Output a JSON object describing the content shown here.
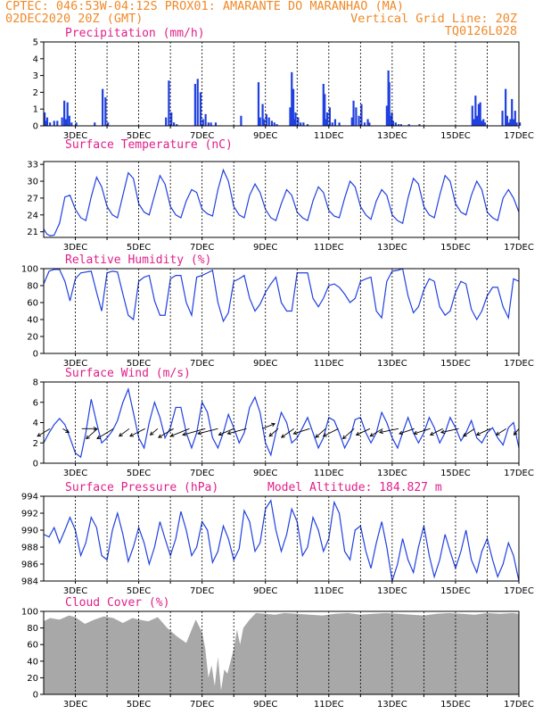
{
  "header": {
    "line1_left": "CPTEC:  046:53W-04:12S  PROX01: AMARANTE DO MARANHAO (MA)",
    "line2_left": "02DEC2020 20Z (GMT)",
    "line2_right": "Vertical Grid Line: 20Z",
    "line3_right": "TQ0126L028"
  },
  "colors": {
    "header": "#f08a2a",
    "title": "#e0208a",
    "series": "#2040e0",
    "cloud": "#a8a8a8"
  },
  "x_axis": {
    "start_day": 2,
    "end_day": 17,
    "labels": [
      "3DEC",
      "5DEC",
      "7DEC",
      "9DEC",
      "11DEC",
      "13DEC",
      "15DEC",
      "17DEC"
    ],
    "label_days": [
      3,
      5,
      7,
      9,
      11,
      13,
      15,
      17
    ],
    "grid": "vertical dashed at 20Z"
  },
  "chart_data": [
    {
      "type": "bar",
      "title": "Precipitation (mm/h)",
      "ylim": [
        0,
        5
      ],
      "yticks": [
        "0",
        "1",
        "2",
        "3",
        "4",
        "5"
      ],
      "x": [
        2.0,
        2.04,
        2.08,
        2.17,
        2.3,
        2.4,
        2.55,
        2.62,
        2.67,
        2.72,
        2.78,
        2.85,
        3.0,
        3.58,
        3.83,
        3.92,
        4.0,
        5.83,
        5.92,
        6.0,
        6.08,
        6.17,
        6.75,
        6.83,
        6.92,
        7.0,
        7.08,
        7.17,
        7.25,
        7.4,
        8.2,
        8.75,
        8.8,
        8.88,
        8.92,
        9.0,
        9.08,
        9.17,
        9.25,
        9.33,
        9.75,
        9.8,
        9.85,
        9.88,
        9.92,
        10.0,
        10.08,
        10.17,
        10.3,
        10.8,
        10.84,
        10.88,
        10.92,
        11.0,
        11.08,
        11.17,
        11.3,
        11.7,
        11.75,
        11.83,
        11.92,
        12.0,
        12.1,
        12.2,
        12.25,
        12.8,
        12.85,
        12.88,
        12.92,
        12.96,
        13.0,
        13.08,
        13.17,
        13.25,
        13.5,
        13.83,
        15.5,
        15.55,
        15.6,
        15.65,
        15.7,
        15.75,
        15.8,
        15.85,
        15.9,
        16.45,
        16.55,
        16.6,
        16.65,
        16.7,
        16.75,
        16.8,
        16.85,
        16.9,
        17.0
      ],
      "values": [
        0.8,
        0.3,
        0.5,
        0.2,
        0.3,
        0.3,
        0.5,
        1.5,
        0.4,
        1.4,
        0.6,
        0.2,
        0.2,
        0.2,
        2.2,
        1.7,
        0.2,
        0.5,
        2.7,
        0.8,
        0.2,
        0.1,
        2.5,
        2.8,
        2.0,
        0.4,
        0.7,
        0.2,
        0.2,
        0.2,
        0.6,
        2.6,
        0.5,
        1.3,
        0.4,
        0.7,
        0.5,
        0.3,
        0.2,
        0.1,
        1.1,
        3.2,
        2.2,
        0.4,
        0.8,
        0.5,
        0.2,
        0.2,
        0.1,
        2.5,
        1.9,
        0.4,
        0.8,
        1.1,
        0.2,
        0.4,
        0.2,
        0.5,
        1.5,
        1.1,
        0.6,
        1.3,
        0.2,
        0.4,
        0.2,
        1.2,
        3.3,
        2.6,
        0.6,
        0.8,
        0.3,
        0.2,
        0.1,
        0.1,
        0.1,
        0.1,
        1.2,
        0.4,
        1.8,
        0.6,
        1.3,
        1.4,
        0.3,
        0.4,
        0.2,
        0.9,
        2.2,
        0.6,
        0.2,
        0.4,
        1.6,
        0.4,
        0.9,
        0.2,
        0.2
      ]
    },
    {
      "type": "line",
      "title": "Surface Temperature (nC)",
      "ylim": [
        20,
        33.5
      ],
      "yticks": [
        "21",
        "24",
        "27",
        "30",
        "33"
      ],
      "x": [
        2.0,
        2.1,
        2.2,
        2.33,
        2.5,
        2.67,
        2.83,
        3.0,
        3.17,
        3.33,
        3.5,
        3.67,
        3.83,
        4.0,
        4.17,
        4.33,
        4.5,
        4.67,
        4.83,
        5.0,
        5.17,
        5.33,
        5.5,
        5.67,
        5.83,
        6.0,
        6.17,
        6.33,
        6.5,
        6.67,
        6.83,
        7.0,
        7.17,
        7.33,
        7.5,
        7.67,
        7.83,
        8.0,
        8.17,
        8.33,
        8.5,
        8.67,
        8.83,
        9.0,
        9.17,
        9.33,
        9.5,
        9.67,
        9.83,
        10.0,
        10.17,
        10.33,
        10.5,
        10.67,
        10.83,
        11.0,
        11.17,
        11.33,
        11.5,
        11.67,
        11.83,
        12.0,
        12.17,
        12.33,
        12.5,
        12.67,
        12.83,
        13.0,
        13.17,
        13.33,
        13.5,
        13.67,
        13.83,
        14.0,
        14.17,
        14.33,
        14.5,
        14.67,
        14.83,
        15.0,
        15.17,
        15.33,
        15.5,
        15.67,
        15.83,
        16.0,
        16.17,
        16.33,
        16.5,
        16.67,
        16.83,
        17.0
      ],
      "values": [
        21.5,
        20.6,
        20.3,
        20.4,
        22.5,
        27.2,
        27.5,
        25.0,
        23.5,
        23.0,
        27.2,
        30.7,
        29.0,
        25.5,
        24.0,
        23.5,
        27.5,
        31.5,
        30.5,
        26.0,
        24.5,
        24.0,
        27.5,
        31.0,
        29.5,
        25.5,
        24.0,
        23.5,
        26.5,
        28.5,
        28.0,
        25.0,
        24.2,
        23.8,
        28.5,
        32.0,
        30.0,
        25.5,
        24.0,
        23.5,
        27.5,
        29.5,
        28.0,
        25.0,
        23.5,
        23.0,
        26.0,
        28.5,
        27.5,
        24.5,
        23.5,
        23.0,
        26.5,
        29.0,
        28.0,
        24.8,
        23.8,
        23.5,
        27.0,
        30.0,
        29.0,
        25.5,
        24.0,
        23.2,
        26.5,
        28.5,
        27.5,
        24.0,
        23.0,
        22.5,
        27.0,
        30.5,
        29.5,
        25.5,
        24.0,
        23.5,
        27.5,
        31.0,
        30.0,
        26.0,
        24.5,
        24.0,
        27.5,
        30.0,
        28.5,
        24.5,
        23.5,
        23.0,
        27.0,
        28.5,
        27.0,
        24.5
      ]
    },
    {
      "type": "line",
      "title": "Relative Humidity (%)",
      "ylim": [
        0,
        100
      ],
      "yticks": [
        "0",
        "20",
        "40",
        "60",
        "80",
        "100"
      ],
      "x": [
        2.0,
        2.17,
        2.33,
        2.5,
        2.67,
        2.83,
        3.0,
        3.17,
        3.33,
        3.5,
        3.67,
        3.83,
        4.0,
        4.17,
        4.33,
        4.5,
        4.67,
        4.83,
        5.0,
        5.17,
        5.33,
        5.5,
        5.67,
        5.83,
        6.0,
        6.17,
        6.33,
        6.5,
        6.67,
        6.83,
        7.0,
        7.17,
        7.33,
        7.5,
        7.67,
        7.83,
        8.0,
        8.17,
        8.33,
        8.5,
        8.67,
        8.83,
        9.0,
        9.17,
        9.33,
        9.5,
        9.67,
        9.83,
        10.0,
        10.17,
        10.33,
        10.5,
        10.67,
        10.83,
        11.0,
        11.17,
        11.33,
        11.5,
        11.67,
        11.83,
        12.0,
        12.17,
        12.33,
        12.5,
        12.67,
        12.83,
        13.0,
        13.17,
        13.33,
        13.5,
        13.67,
        13.83,
        14.0,
        14.17,
        14.33,
        14.5,
        14.67,
        14.83,
        15.0,
        15.17,
        15.33,
        15.5,
        15.67,
        15.83,
        16.0,
        16.17,
        16.33,
        16.5,
        16.67,
        16.83,
        17.0
      ],
      "values": [
        82,
        97,
        99,
        99,
        85,
        62,
        88,
        95,
        96,
        97,
        72,
        50,
        95,
        97,
        96,
        70,
        45,
        40,
        85,
        90,
        92,
        62,
        45,
        45,
        88,
        92,
        92,
        60,
        45,
        90,
        92,
        95,
        98,
        60,
        38,
        48,
        85,
        88,
        92,
        65,
        50,
        58,
        72,
        82,
        90,
        60,
        50,
        50,
        95,
        95,
        95,
        65,
        55,
        65,
        80,
        82,
        78,
        70,
        60,
        65,
        85,
        88,
        90,
        50,
        42,
        85,
        97,
        98,
        100,
        68,
        48,
        55,
        75,
        88,
        85,
        55,
        45,
        50,
        72,
        85,
        82,
        52,
        40,
        50,
        68,
        78,
        78,
        55,
        42,
        88,
        85
      ]
    },
    {
      "type": "line",
      "title": "Surface Wind (m/s)",
      "ylim": [
        0,
        8
      ],
      "yticks": [
        "0",
        "2",
        "4",
        "6",
        "8"
      ],
      "x": [
        2.0,
        2.17,
        2.33,
        2.5,
        2.67,
        2.83,
        3.0,
        3.17,
        3.33,
        3.5,
        3.67,
        3.83,
        4.0,
        4.17,
        4.33,
        4.5,
        4.67,
        4.83,
        5.0,
        5.17,
        5.33,
        5.5,
        5.67,
        5.83,
        6.0,
        6.17,
        6.33,
        6.5,
        6.67,
        6.83,
        7.0,
        7.17,
        7.33,
        7.5,
        7.67,
        7.83,
        8.0,
        8.17,
        8.33,
        8.5,
        8.67,
        8.83,
        9.0,
        9.17,
        9.33,
        9.5,
        9.67,
        9.83,
        10.0,
        10.17,
        10.33,
        10.5,
        10.67,
        10.83,
        11.0,
        11.17,
        11.33,
        11.5,
        11.67,
        11.83,
        12.0,
        12.17,
        12.33,
        12.5,
        12.67,
        12.83,
        13.0,
        13.17,
        13.33,
        13.5,
        13.67,
        13.83,
        14.0,
        14.17,
        14.33,
        14.5,
        14.67,
        14.83,
        15.0,
        15.17,
        15.33,
        15.5,
        15.67,
        15.83,
        16.0,
        16.17,
        16.33,
        16.5,
        16.67,
        16.83,
        17.0
      ],
      "values": [
        2.0,
        3.0,
        3.8,
        4.4,
        3.8,
        2.5,
        1.0,
        0.6,
        3.0,
        6.3,
        4.0,
        2.0,
        2.5,
        3.2,
        4.2,
        6.0,
        7.3,
        5.0,
        2.5,
        1.5,
        4.0,
        6.0,
        4.5,
        2.5,
        3.5,
        5.5,
        5.5,
        3.0,
        1.5,
        3.0,
        6.0,
        5.0,
        2.5,
        1.5,
        3.0,
        4.8,
        3.5,
        2.0,
        3.0,
        5.5,
        6.5,
        5.0,
        2.0,
        0.8,
        3.0,
        5.0,
        4.0,
        2.0,
        2.5,
        3.5,
        4.5,
        3.0,
        1.5,
        2.5,
        4.5,
        4.2,
        3.0,
        1.5,
        2.5,
        4.3,
        4.5,
        3.0,
        2.0,
        3.0,
        5.0,
        4.0,
        2.5,
        1.5,
        3.0,
        4.5,
        3.0,
        2.0,
        3.0,
        4.5,
        3.5,
        2.0,
        3.0,
        4.5,
        3.5,
        2.2,
        3.0,
        4.2,
        2.5,
        2.0,
        3.0,
        3.5,
        2.5,
        1.8,
        3.5,
        4.0,
        1.5
      ]
    },
    {
      "type": "line",
      "title": "Surface Pressure (hPa)",
      "annotation": "Model Altitude: 184.827 m",
      "ylim": [
        984,
        994
      ],
      "yticks": [
        "984",
        "986",
        "988",
        "990",
        "992",
        "994"
      ],
      "x": [
        2.0,
        2.17,
        2.33,
        2.5,
        2.67,
        2.83,
        3.0,
        3.17,
        3.33,
        3.5,
        3.67,
        3.83,
        4.0,
        4.17,
        4.33,
        4.5,
        4.67,
        4.83,
        5.0,
        5.17,
        5.33,
        5.5,
        5.67,
        5.83,
        6.0,
        6.17,
        6.33,
        6.5,
        6.67,
        6.83,
        7.0,
        7.17,
        7.33,
        7.5,
        7.67,
        7.83,
        8.0,
        8.17,
        8.33,
        8.5,
        8.67,
        8.83,
        9.0,
        9.17,
        9.33,
        9.5,
        9.67,
        9.83,
        10.0,
        10.17,
        10.33,
        10.5,
        10.67,
        10.83,
        11.0,
        11.17,
        11.33,
        11.5,
        11.67,
        11.83,
        12.0,
        12.17,
        12.33,
        12.5,
        12.67,
        12.83,
        13.0,
        13.17,
        13.33,
        13.5,
        13.67,
        13.83,
        14.0,
        14.17,
        14.33,
        14.5,
        14.67,
        14.83,
        15.0,
        15.17,
        15.33,
        15.5,
        15.67,
        15.83,
        16.0,
        16.17,
        16.33,
        16.5,
        16.67,
        16.83,
        17.0
      ],
      "values": [
        989.5,
        989.2,
        990.3,
        988.5,
        990.0,
        991.5,
        990.0,
        987.0,
        988.5,
        991.5,
        990.3,
        987.0,
        986.5,
        990.0,
        992.0,
        989.5,
        986.3,
        988.0,
        990.3,
        988.5,
        986.0,
        988.0,
        991.0,
        989.0,
        987.0,
        989.0,
        992.2,
        990.0,
        987.0,
        988.0,
        991.0,
        990.0,
        986.2,
        987.5,
        990.5,
        989.0,
        986.5,
        987.8,
        992.3,
        991.0,
        987.5,
        988.5,
        992.5,
        993.5,
        990.0,
        987.5,
        989.5,
        992.5,
        991.0,
        987.0,
        988.0,
        991.5,
        990.0,
        987.5,
        989.0,
        993.3,
        992.0,
        987.5,
        986.5,
        990.0,
        990.5,
        987.5,
        985.5,
        988.5,
        991.0,
        988.0,
        984.0,
        986.0,
        989.0,
        986.5,
        985.0,
        988.0,
        990.5,
        987.0,
        984.5,
        986.5,
        989.5,
        987.5,
        985.5,
        987.5,
        990.0,
        986.5,
        985.0,
        987.5,
        989.0,
        986.5,
        984.5,
        986.0,
        988.5,
        987.0,
        984.0
      ]
    },
    {
      "type": "area",
      "title": "Cloud Cover (%)",
      "ylim": [
        0,
        100
      ],
      "yticks": [
        "0",
        "20",
        "40",
        "60",
        "80",
        "100"
      ],
      "x": [
        2.0,
        2.2,
        2.5,
        2.8,
        3.0,
        3.3,
        3.6,
        3.9,
        4.2,
        4.5,
        4.8,
        5.0,
        5.3,
        5.6,
        5.9,
        6.2,
        6.5,
        6.8,
        7.0,
        7.1,
        7.2,
        7.3,
        7.4,
        7.5,
        7.6,
        7.7,
        7.8,
        7.9,
        8.0,
        8.1,
        8.2,
        8.3,
        8.5,
        8.7,
        9.0,
        9.3,
        9.6,
        10.0,
        10.4,
        10.8,
        11.2,
        11.6,
        12.0,
        12.4,
        12.8,
        13.2,
        13.6,
        14.0,
        14.4,
        14.8,
        15.2,
        15.6,
        16.0,
        16.4,
        16.8,
        17.0
      ],
      "values": [
        88,
        92,
        90,
        95,
        93,
        85,
        90,
        94,
        92,
        86,
        92,
        90,
        88,
        93,
        80,
        70,
        62,
        90,
        75,
        55,
        20,
        35,
        10,
        45,
        5,
        30,
        25,
        40,
        55,
        78,
        60,
        80,
        90,
        98,
        97,
        96,
        98,
        97,
        96,
        95,
        97,
        98,
        96,
        97,
        98,
        97,
        96,
        95,
        97,
        98,
        97,
        96,
        98,
        97,
        98,
        97
      ]
    },
    {
      "type": "wind_vectors",
      "days": [
        2.2,
        2.6,
        3.2,
        3.7,
        4.2,
        4.7,
        5.2,
        5.6,
        6.1,
        6.6,
        7.1,
        7.5,
        8.0,
        8.4,
        8.9,
        9.4,
        9.9,
        10.4,
        10.9,
        11.3,
        11.8,
        12.3,
        12.7,
        13.2,
        13.7,
        14.2,
        14.6,
        15.1,
        15.6,
        16.1,
        16.6,
        17.0
      ],
      "dx": [
        -1.0,
        0.5,
        1.2,
        -0.9,
        -1.3,
        -0.8,
        -1.2,
        -0.6,
        -1.2,
        -1.5,
        -1.8,
        -1.6,
        -1.2,
        -1.5,
        1.0,
        -0.7,
        -1.0,
        -1.3,
        -0.8,
        -1.2,
        -0.9,
        -1.1,
        -1.0,
        -1.5,
        -1.2,
        -1.3,
        -1.0,
        -1.4,
        -0.9,
        -1.1,
        -0.8,
        -0.4
      ],
      "dy": [
        -0.6,
        -0.3,
        0.0,
        -0.8,
        -0.8,
        -0.6,
        -0.6,
        -0.5,
        -0.7,
        -0.6,
        -0.5,
        -0.4,
        -0.5,
        -0.4,
        0.4,
        -0.6,
        -0.7,
        -0.4,
        -0.7,
        -0.6,
        -0.8,
        -0.5,
        -0.6,
        -0.3,
        -0.4,
        -0.4,
        -0.5,
        -0.3,
        -0.6,
        -0.5,
        -0.5,
        -0.5
      ]
    }
  ]
}
